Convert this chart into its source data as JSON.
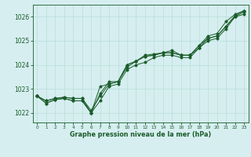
{
  "title": "Graphe pression niveau de la mer (hPa)",
  "bg_color": "#d6eef0",
  "grid_color": "#b8ddd8",
  "line_color": "#1a5c2a",
  "hours": [
    0,
    1,
    2,
    3,
    4,
    5,
    6,
    7,
    8,
    9,
    10,
    11,
    12,
    13,
    14,
    15,
    16,
    17,
    18,
    19,
    20,
    21,
    22,
    23
  ],
  "series": [
    [
      1022.7,
      1022.4,
      1022.55,
      1022.6,
      1022.5,
      1022.5,
      1022.0,
      1022.5,
      1023.1,
      1023.2,
      1023.8,
      1024.0,
      1024.1,
      1024.3,
      1024.4,
      1024.4,
      1024.3,
      1024.3,
      1024.7,
      1025.0,
      1025.1,
      1025.5,
      1026.0,
      1026.1
    ],
    [
      1022.7,
      1022.4,
      1022.55,
      1022.6,
      1022.5,
      1022.5,
      1022.0,
      1022.8,
      1023.3,
      1023.3,
      1023.9,
      1024.15,
      1024.35,
      1024.4,
      1024.5,
      1024.5,
      1024.4,
      1024.4,
      1024.8,
      1025.1,
      1025.2,
      1025.6,
      1026.0,
      1026.2
    ],
    [
      1022.7,
      1022.5,
      1022.6,
      1022.65,
      1022.6,
      1022.6,
      1022.1,
      1022.7,
      1023.2,
      1023.3,
      1024.0,
      1024.15,
      1024.4,
      1024.45,
      1024.5,
      1024.6,
      1024.4,
      1024.4,
      1024.8,
      1025.2,
      1025.3,
      1025.8,
      1026.1,
      1026.25
    ],
    [
      1022.7,
      1022.5,
      1022.6,
      1022.65,
      1022.6,
      1022.6,
      1022.0,
      1023.1,
      1023.2,
      1023.3,
      1024.0,
      1024.15,
      1024.35,
      1024.4,
      1024.5,
      1024.5,
      1024.4,
      1024.4,
      1024.7,
      1025.1,
      1025.2,
      1025.6,
      1026.05,
      1026.25
    ]
  ],
  "yticks": [
    1022,
    1023,
    1024,
    1025,
    1026
  ],
  "ylim": [
    1021.6,
    1026.5
  ],
  "xlim": [
    -0.5,
    23.5
  ]
}
